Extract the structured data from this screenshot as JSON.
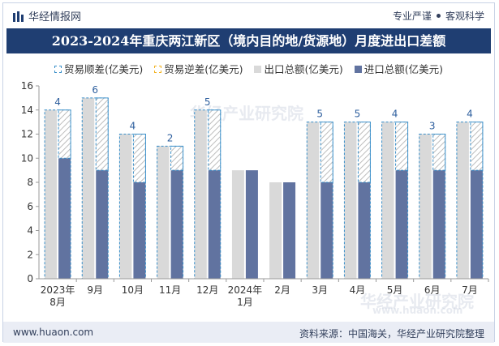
{
  "header": {
    "brand": "华经情报网",
    "tagline_left": "专业严谨",
    "tagline_right": "客观科学"
  },
  "colors": {
    "title_bg": "#1f3e72",
    "export": "#d9d9d9",
    "import": "#6173a0",
    "surplus_border": "#3a8fc9",
    "deficit_border": "#f2b21f",
    "label": "#2e5f9e"
  },
  "legend": [
    {
      "key": "surplus",
      "label": "贸易顺差(亿美元)"
    },
    {
      "key": "deficit",
      "label": "贸易逆差(亿美元)"
    },
    {
      "key": "export",
      "label": "出口总额(亿美元)"
    },
    {
      "key": "import",
      "label": "进口总额(亿美元)"
    }
  ],
  "chart_data": {
    "type": "bar",
    "title": "2023-2024年重庆两江新区（境内目的地/货源地）月度进出口差额",
    "categories": [
      "2023年8月",
      "9月",
      "10月",
      "11月",
      "12月",
      "2024年1月",
      "2月",
      "3月",
      "4月",
      "5月",
      "6月",
      "7月"
    ],
    "series": [
      {
        "name": "出口总额(亿美元)",
        "values": [
          14,
          15,
          12,
          11,
          14,
          9,
          8,
          13,
          13,
          13,
          12,
          13
        ]
      },
      {
        "name": "进口总额(亿美元)",
        "values": [
          10,
          9,
          8,
          9,
          9,
          9,
          8,
          8,
          8,
          9,
          9,
          9
        ]
      },
      {
        "name": "贸易顺差(亿美元)",
        "values": [
          4,
          6,
          4,
          2,
          5,
          null,
          null,
          5,
          5,
          4,
          3,
          4
        ]
      },
      {
        "name": "贸易逆差(亿美元)",
        "values": [
          null,
          null,
          null,
          null,
          null,
          null,
          null,
          null,
          null,
          null,
          null,
          null
        ]
      }
    ],
    "surplus_labels": [
      "4",
      "6",
      "4",
      "2",
      "5",
      "",
      "",
      "5",
      "5",
      "4",
      "3",
      "4"
    ],
    "ylim": [
      0,
      16
    ],
    "yticks": [
      0,
      2,
      4,
      6,
      8,
      10,
      12,
      14,
      16
    ],
    "xlabel": "",
    "ylabel": ""
  },
  "footer": {
    "site": "www.huaon.com",
    "source": "资料来源：中国海关，华经产业研究院整理"
  },
  "watermarks": {
    "center": "华经产业研究院",
    "bottom_cn": "华经产业研究院",
    "bottom_url": "www.huaon.com"
  }
}
